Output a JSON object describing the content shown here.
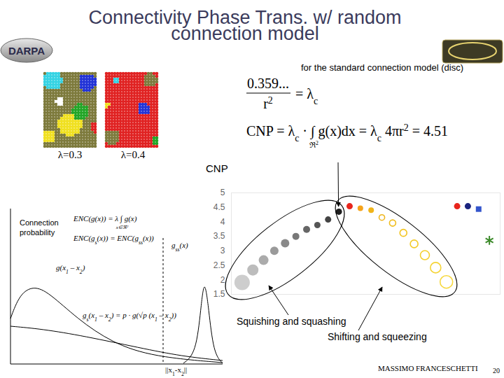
{
  "header": {
    "title": "Connectivity Phase Trans. w/ random connection model",
    "logo_text": "DARPA"
  },
  "simulations": [
    {
      "label": "λ=0.3"
    },
    {
      "label": "λ=0.4"
    }
  ],
  "formula": {
    "caption": "for the standard connection model (disc)",
    "numerator": "0.359...",
    "denominator": [
      {
        "t": "r"
      },
      {
        "sup": "2"
      }
    ],
    "line1_rhs": [
      {
        "t": "= λ"
      },
      {
        "sub": "c"
      }
    ],
    "line2": [
      {
        "t": "CNP = λ"
      },
      {
        "sub": "c"
      },
      {
        "t": " · ∫ g(x)dx = λ"
      },
      {
        "sub": "c"
      },
      {
        "t": " 4πr"
      },
      {
        "sup": "2"
      },
      {
        "t": " = 4.51"
      }
    ],
    "integral_domain": [
      {
        "t": "ℜ"
      },
      {
        "sup": "2"
      }
    ]
  },
  "sketch": {
    "y_label": [
      "Connection",
      "probability"
    ],
    "x_label": [
      {
        "t": "||x"
      },
      {
        "sub": "1"
      },
      {
        "t": "-x"
      },
      {
        "sub": "2"
      },
      {
        "t": "||"
      }
    ],
    "enc_1": [
      {
        "t": "ENC(g(x)) = λ ∫ g(x)"
      }
    ],
    "enc_1_domain": [
      {
        "t": "x∈ℜ"
      },
      {
        "sup": "2"
      }
    ],
    "enc_2": [
      {
        "t": "ENC(g"
      },
      {
        "sub": "s"
      },
      {
        "t": "(x)) = ENC(g"
      },
      {
        "sub": "ss"
      },
      {
        "t": "(x))"
      }
    ],
    "curve_g": [
      {
        "t": "g(x"
      },
      {
        "sub": "1"
      },
      {
        "t": " – x"
      },
      {
        "sub": "2"
      },
      {
        "t": ")"
      }
    ],
    "curve_gss": [
      {
        "t": "g"
      },
      {
        "sub": "ss"
      },
      {
        "t": "(x)"
      }
    ],
    "curve_gs": [
      {
        "t": "g"
      },
      {
        "sub": "s"
      },
      {
        "t": "(x"
      },
      {
        "sub": "1"
      },
      {
        "t": " – x"
      },
      {
        "sub": "2"
      },
      {
        "t": ") = p · g(√p (x"
      },
      {
        "sub": "1"
      },
      {
        "t": " – x"
      },
      {
        "sub": "2"
      },
      {
        "t": "))"
      }
    ]
  },
  "chart_data": {
    "type": "scatter",
    "y_label": "CNP",
    "xlim": [
      0,
      25
    ],
    "ylim": [
      1.5,
      5
    ],
    "yticks": [
      1.5,
      2,
      2.5,
      3,
      3.5,
      4,
      4.5,
      5
    ],
    "grid": false,
    "tick_labels": "y",
    "annotations": [
      "Squishing and squashing",
      "Shifting and squeezing"
    ],
    "series": [
      {
        "marker": "circle",
        "x": [
          1,
          2,
          3,
          4,
          5,
          6,
          7,
          8,
          9,
          10
        ],
        "values": [
          1.91,
          2.34,
          2.68,
          3.0,
          3.26,
          3.5,
          3.74,
          3.89,
          4.08,
          4.35
        ],
        "sizes": [
          11,
          8,
          7,
          6,
          6,
          5,
          5,
          4.5,
          4.5,
          4.5
        ],
        "colors": [
          "#cdcdcd",
          "#bcbcbc",
          "#ababab",
          "#9a9a9a",
          "#898989",
          "#787878",
          "#666666",
          "#555555",
          "#444444",
          "#1e1e1e"
        ]
      },
      {
        "marker": "circle",
        "x": [
          11
        ],
        "values": [
          4.54
        ],
        "sizes": [
          4.5
        ],
        "color": "#e8251c"
      },
      {
        "marker": "circle",
        "x": [
          12,
          13
        ],
        "values": [
          4.47,
          4.4
        ],
        "sizes": [
          4,
          4
        ],
        "colors": [
          "#f5a31a",
          "#f0b419"
        ]
      },
      {
        "marker": "ring",
        "x": [
          14,
          15,
          16,
          17,
          18,
          19,
          20
        ],
        "values": [
          4.15,
          3.96,
          3.62,
          3.24,
          2.85,
          2.42,
          1.93
        ],
        "sizes": [
          4,
          4.5,
          5,
          5.5,
          6.5,
          7.5,
          9
        ],
        "colors": [
          "#eeb51c",
          "#f0bd1e",
          "#f2c420",
          "#f3ca26",
          "#f4cf2e",
          "#f5d436",
          "#f6d83e"
        ]
      },
      {
        "marker": "circle",
        "x": [
          21
        ],
        "values": [
          4.54
        ],
        "sizes": [
          4.5
        ],
        "color": "#e8251c"
      },
      {
        "marker": "circle",
        "x": [
          22
        ],
        "values": [
          4.54
        ],
        "sizes": [
          4.5
        ],
        "color": "#1a237e"
      },
      {
        "marker": "square",
        "x": [
          23
        ],
        "values": [
          4.44
        ],
        "sizes": [
          4.5
        ],
        "color": "#3355cc"
      },
      {
        "marker": "asterisk",
        "x": [
          24
        ],
        "values": [
          3.36
        ],
        "sizes": [
          6
        ],
        "color": "#3c8a2a"
      }
    ]
  },
  "footer": {
    "author": "MASSIMO FRANCESCHETTI",
    "page": 20
  }
}
